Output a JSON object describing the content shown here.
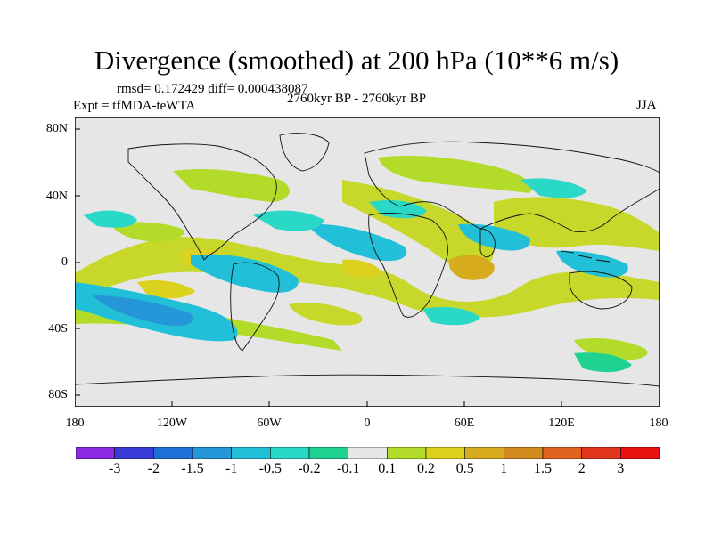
{
  "title": "Divergence (smoothed) at 200 hPa (10**6 m/s)",
  "stats": "rmsd= 0.172429 diff= 0.000438087",
  "experiment": "Expt = tfMDA-teWTA",
  "period": "2760kyr BP - 2760kyr BP",
  "season": "JJA",
  "y_axis_labels": [
    "80N",
    "40N",
    "0",
    "40S",
    "80S"
  ],
  "x_axis_labels": [
    "180",
    "120W",
    "60W",
    "0",
    "60E",
    "120E",
    "180"
  ],
  "colorbar": {
    "labels": [
      "-3",
      "-2",
      "-1.5",
      "-1",
      "-0.5",
      "-0.2",
      "-0.1",
      "0.1",
      "0.2",
      "0.5",
      "1",
      "1.5",
      "2",
      "3"
    ],
    "colors": [
      "#8a2be2",
      "#3a3ad6",
      "#1f6fd8",
      "#2596d8",
      "#22c0d8",
      "#2ad8c8",
      "#1ed290",
      "#e6e6e6",
      "#b3dc2a",
      "#dcd21e",
      "#d6ac1e",
      "#d28a1e",
      "#e0641e",
      "#e2361e",
      "#e81010"
    ]
  },
  "colors": {
    "background_field": "#e6e6e6",
    "coast": "#111111"
  }
}
